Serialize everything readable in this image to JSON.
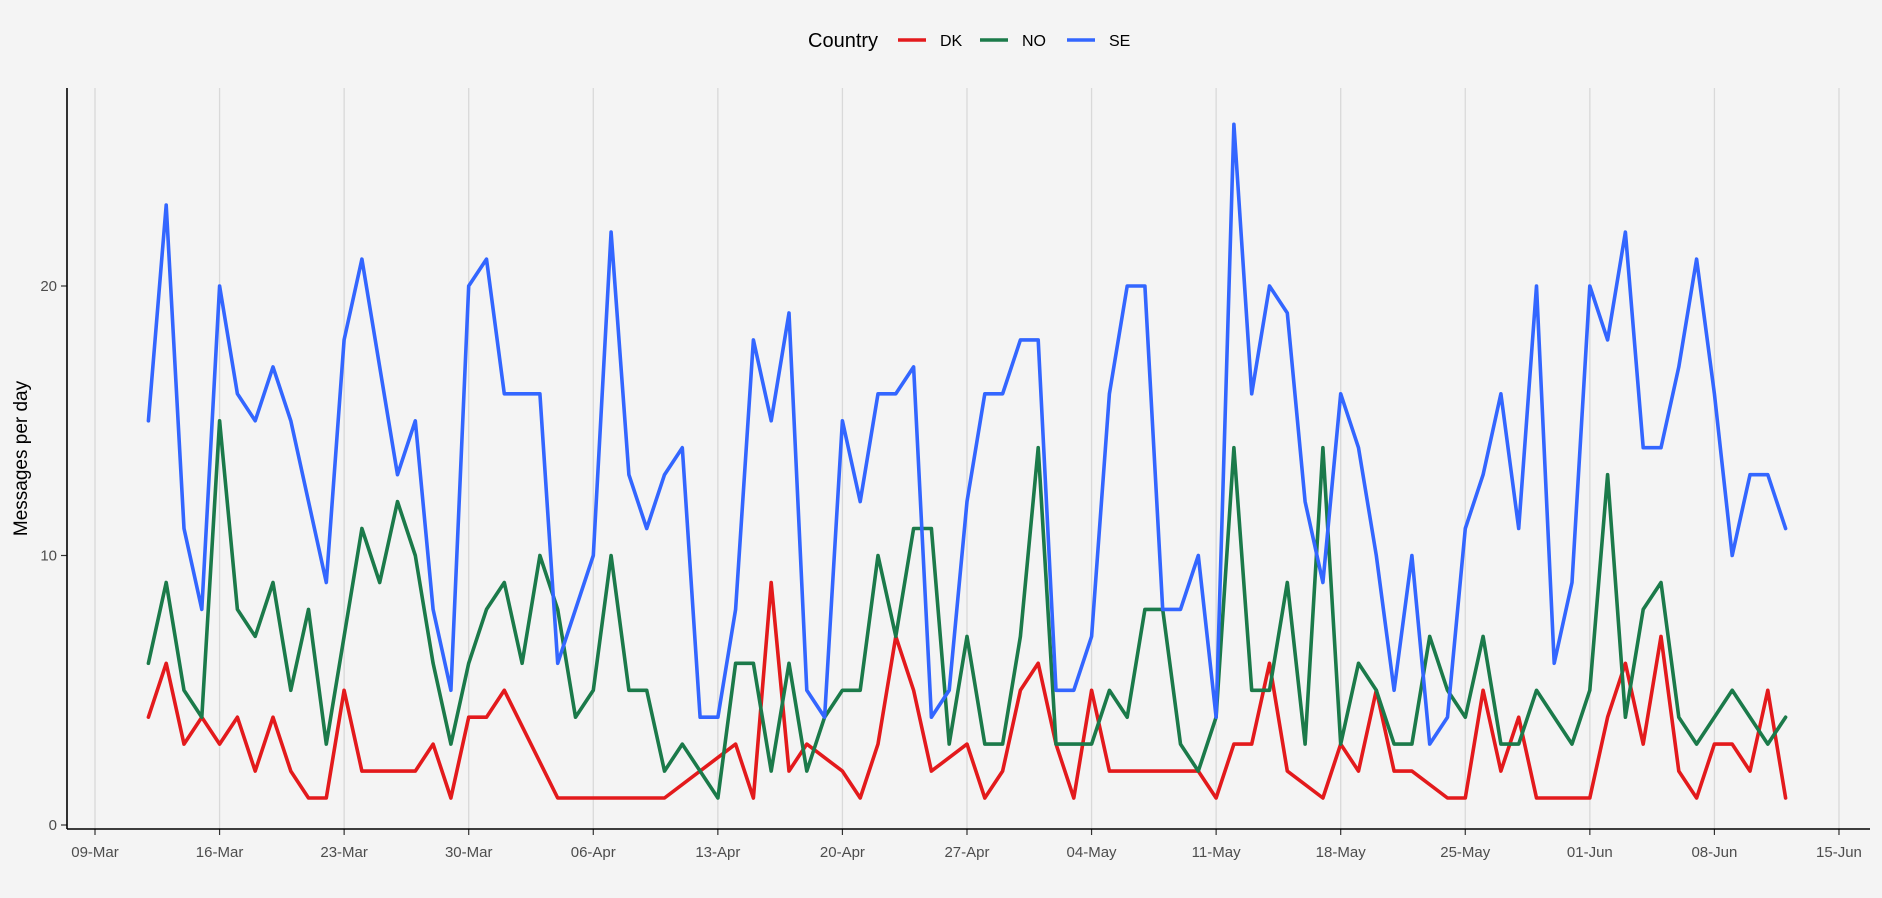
{
  "chart_data": {
    "type": "line",
    "xlabel": "",
    "ylabel": "Messages per day",
    "legend": {
      "title": "Country",
      "placement": "top-center"
    },
    "x_range": [
      "2020-03-09",
      "2020-06-15"
    ],
    "ylim": [
      0,
      26.5
    ],
    "x_ticks": [
      "09-Mar",
      "16-Mar",
      "23-Mar",
      "30-Mar",
      "06-Apr",
      "13-Apr",
      "20-Apr",
      "27-Apr",
      "04-May",
      "11-May",
      "18-May",
      "25-May",
      "01-Jun",
      "08-Jun",
      "15-Jun"
    ],
    "y_ticks": [
      0,
      10,
      20
    ],
    "grid": {
      "vertical": true,
      "horizontal": false
    },
    "series": [
      {
        "name": "DK",
        "color": "#e31a1c",
        "points": [
          [
            "2020-03-12",
            4
          ],
          [
            "2020-03-13",
            6
          ],
          [
            "2020-03-14",
            3
          ],
          [
            "2020-03-15",
            4
          ],
          [
            "2020-03-16",
            3
          ],
          [
            "2020-03-17",
            4
          ],
          [
            "2020-03-18",
            2
          ],
          [
            "2020-03-19",
            4
          ],
          [
            "2020-03-20",
            2
          ],
          [
            "2020-03-21",
            1
          ],
          [
            "2020-03-22",
            1
          ],
          [
            "2020-03-23",
            5
          ],
          [
            "2020-03-24",
            2
          ],
          [
            "2020-03-25",
            2
          ],
          [
            "2020-03-26",
            2
          ],
          [
            "2020-03-27",
            2
          ],
          [
            "2020-03-28",
            3
          ],
          [
            "2020-03-29",
            1
          ],
          [
            "2020-03-30",
            4
          ],
          [
            "2020-03-31",
            4
          ],
          [
            "2020-04-01",
            5
          ],
          [
            "2020-04-04",
            1
          ],
          [
            "2020-04-10",
            1
          ],
          [
            "2020-04-14",
            3
          ],
          [
            "2020-04-15",
            1
          ],
          [
            "2020-04-16",
            9
          ],
          [
            "2020-04-17",
            2
          ],
          [
            "2020-04-18",
            3
          ],
          [
            "2020-04-20",
            2
          ],
          [
            "2020-04-21",
            1
          ],
          [
            "2020-04-22",
            3
          ],
          [
            "2020-04-23",
            7
          ],
          [
            "2020-04-24",
            5
          ],
          [
            "2020-04-25",
            2
          ],
          [
            "2020-04-27",
            3
          ],
          [
            "2020-04-28",
            1
          ],
          [
            "2020-04-29",
            2
          ],
          [
            "2020-04-30",
            5
          ],
          [
            "2020-05-01",
            6
          ],
          [
            "2020-05-02",
            3
          ],
          [
            "2020-05-03",
            1
          ],
          [
            "2020-05-04",
            5
          ],
          [
            "2020-05-05",
            2
          ],
          [
            "2020-05-10",
            2
          ],
          [
            "2020-05-11",
            1
          ],
          [
            "2020-05-12",
            3
          ],
          [
            "2020-05-13",
            3
          ],
          [
            "2020-05-14",
            6
          ],
          [
            "2020-05-15",
            2
          ],
          [
            "2020-05-17",
            1
          ],
          [
            "2020-05-18",
            3
          ],
          [
            "2020-05-19",
            2
          ],
          [
            "2020-05-20",
            5
          ],
          [
            "2020-05-21",
            2
          ],
          [
            "2020-05-22",
            2
          ],
          [
            "2020-05-24",
            1
          ],
          [
            "2020-05-25",
            1
          ],
          [
            "2020-05-26",
            5
          ],
          [
            "2020-05-27",
            2
          ],
          [
            "2020-05-28",
            4
          ],
          [
            "2020-05-29",
            1
          ],
          [
            "2020-06-01",
            1
          ],
          [
            "2020-06-02",
            4
          ],
          [
            "2020-06-03",
            6
          ],
          [
            "2020-06-04",
            3
          ],
          [
            "2020-06-05",
            7
          ],
          [
            "2020-06-06",
            2
          ],
          [
            "2020-06-07",
            1
          ],
          [
            "2020-06-08",
            3
          ],
          [
            "2020-06-09",
            3
          ],
          [
            "2020-06-10",
            2
          ],
          [
            "2020-06-11",
            5
          ],
          [
            "2020-06-12",
            1
          ]
        ]
      },
      {
        "name": "NO",
        "color": "#1b7a4a",
        "points": [
          [
            "2020-03-12",
            6
          ],
          [
            "2020-03-13",
            9
          ],
          [
            "2020-03-14",
            5
          ],
          [
            "2020-03-15",
            4
          ],
          [
            "2020-03-16",
            15
          ],
          [
            "2020-03-17",
            8
          ],
          [
            "2020-03-18",
            7
          ],
          [
            "2020-03-19",
            9
          ],
          [
            "2020-03-20",
            5
          ],
          [
            "2020-03-21",
            8
          ],
          [
            "2020-03-22",
            3
          ],
          [
            "2020-03-23",
            7
          ],
          [
            "2020-03-24",
            11
          ],
          [
            "2020-03-25",
            9
          ],
          [
            "2020-03-26",
            12
          ],
          [
            "2020-03-27",
            10
          ],
          [
            "2020-03-28",
            6
          ],
          [
            "2020-03-29",
            3
          ],
          [
            "2020-03-30",
            6
          ],
          [
            "2020-03-31",
            8
          ],
          [
            "2020-04-01",
            9
          ],
          [
            "2020-04-02",
            6
          ],
          [
            "2020-04-03",
            10
          ],
          [
            "2020-04-04",
            8
          ],
          [
            "2020-04-05",
            4
          ],
          [
            "2020-04-06",
            5
          ],
          [
            "2020-04-07",
            10
          ],
          [
            "2020-04-08",
            5
          ],
          [
            "2020-04-09",
            5
          ],
          [
            "2020-04-10",
            2
          ],
          [
            "2020-04-11",
            3
          ],
          [
            "2020-04-13",
            1
          ],
          [
            "2020-04-14",
            6
          ],
          [
            "2020-04-15",
            6
          ],
          [
            "2020-04-16",
            2
          ],
          [
            "2020-04-17",
            6
          ],
          [
            "2020-04-18",
            2
          ],
          [
            "2020-04-19",
            4
          ],
          [
            "2020-04-20",
            5
          ],
          [
            "2020-04-21",
            5
          ],
          [
            "2020-04-22",
            10
          ],
          [
            "2020-04-23",
            7
          ],
          [
            "2020-04-24",
            11
          ],
          [
            "2020-04-25",
            11
          ],
          [
            "2020-04-26",
            3
          ],
          [
            "2020-04-27",
            7
          ],
          [
            "2020-04-28",
            3
          ],
          [
            "2020-04-29",
            3
          ],
          [
            "2020-04-30",
            7
          ],
          [
            "2020-05-01",
            14
          ],
          [
            "2020-05-02",
            3
          ],
          [
            "2020-05-04",
            3
          ],
          [
            "2020-05-05",
            5
          ],
          [
            "2020-05-06",
            4
          ],
          [
            "2020-05-07",
            8
          ],
          [
            "2020-05-08",
            8
          ],
          [
            "2020-05-09",
            3
          ],
          [
            "2020-05-10",
            2
          ],
          [
            "2020-05-11",
            4
          ],
          [
            "2020-05-12",
            14
          ],
          [
            "2020-05-13",
            5
          ],
          [
            "2020-05-14",
            5
          ],
          [
            "2020-05-15",
            9
          ],
          [
            "2020-05-16",
            3
          ],
          [
            "2020-05-17",
            14
          ],
          [
            "2020-05-18",
            3
          ],
          [
            "2020-05-19",
            6
          ],
          [
            "2020-05-20",
            5
          ],
          [
            "2020-05-21",
            3
          ],
          [
            "2020-05-22",
            3
          ],
          [
            "2020-05-23",
            7
          ],
          [
            "2020-05-24",
            5
          ],
          [
            "2020-05-25",
            4
          ],
          [
            "2020-05-26",
            7
          ],
          [
            "2020-05-27",
            3
          ],
          [
            "2020-05-28",
            3
          ],
          [
            "2020-05-29",
            5
          ],
          [
            "2020-05-31",
            3
          ],
          [
            "2020-06-01",
            5
          ],
          [
            "2020-06-02",
            13
          ],
          [
            "2020-06-03",
            4
          ],
          [
            "2020-06-04",
            8
          ],
          [
            "2020-06-05",
            9
          ],
          [
            "2020-06-06",
            4
          ],
          [
            "2020-06-07",
            3
          ],
          [
            "2020-06-09",
            5
          ],
          [
            "2020-06-11",
            3
          ],
          [
            "2020-06-12",
            4
          ]
        ]
      },
      {
        "name": "SE",
        "color": "#3366ff",
        "points": [
          [
            "2020-03-12",
            15
          ],
          [
            "2020-03-13",
            23
          ],
          [
            "2020-03-14",
            11
          ],
          [
            "2020-03-15",
            8
          ],
          [
            "2020-03-16",
            20
          ],
          [
            "2020-03-17",
            16
          ],
          [
            "2020-03-18",
            15
          ],
          [
            "2020-03-19",
            17
          ],
          [
            "2020-03-20",
            15
          ],
          [
            "2020-03-22",
            9
          ],
          [
            "2020-03-23",
            18
          ],
          [
            "2020-03-24",
            21
          ],
          [
            "2020-03-26",
            13
          ],
          [
            "2020-03-27",
            15
          ],
          [
            "2020-03-28",
            8
          ],
          [
            "2020-03-29",
            5
          ],
          [
            "2020-03-30",
            20
          ],
          [
            "2020-03-31",
            21
          ],
          [
            "2020-04-01",
            16
          ],
          [
            "2020-04-03",
            16
          ],
          [
            "2020-04-04",
            6
          ],
          [
            "2020-04-06",
            10
          ],
          [
            "2020-04-07",
            22
          ],
          [
            "2020-04-08",
            13
          ],
          [
            "2020-04-09",
            11
          ],
          [
            "2020-04-10",
            13
          ],
          [
            "2020-04-11",
            14
          ],
          [
            "2020-04-12",
            4
          ],
          [
            "2020-04-13",
            4
          ],
          [
            "2020-04-14",
            8
          ],
          [
            "2020-04-15",
            18
          ],
          [
            "2020-04-16",
            15
          ],
          [
            "2020-04-17",
            19
          ],
          [
            "2020-04-18",
            5
          ],
          [
            "2020-04-19",
            4
          ],
          [
            "2020-04-20",
            15
          ],
          [
            "2020-04-21",
            12
          ],
          [
            "2020-04-22",
            16
          ],
          [
            "2020-04-23",
            16
          ],
          [
            "2020-04-24",
            17
          ],
          [
            "2020-04-25",
            4
          ],
          [
            "2020-04-26",
            5
          ],
          [
            "2020-04-27",
            12
          ],
          [
            "2020-04-28",
            16
          ],
          [
            "2020-04-29",
            16
          ],
          [
            "2020-04-30",
            18
          ],
          [
            "2020-05-01",
            18
          ],
          [
            "2020-05-02",
            5
          ],
          [
            "2020-05-03",
            5
          ],
          [
            "2020-05-04",
            7
          ],
          [
            "2020-05-05",
            16
          ],
          [
            "2020-05-06",
            20
          ],
          [
            "2020-05-07",
            20
          ],
          [
            "2020-05-08",
            8
          ],
          [
            "2020-05-09",
            8
          ],
          [
            "2020-05-10",
            10
          ],
          [
            "2020-05-11",
            4
          ],
          [
            "2020-05-12",
            26
          ],
          [
            "2020-05-13",
            16
          ],
          [
            "2020-05-14",
            20
          ],
          [
            "2020-05-15",
            19
          ],
          [
            "2020-05-16",
            12
          ],
          [
            "2020-05-17",
            9
          ],
          [
            "2020-05-18",
            16
          ],
          [
            "2020-05-19",
            14
          ],
          [
            "2020-05-20",
            10
          ],
          [
            "2020-05-21",
            5
          ],
          [
            "2020-05-22",
            10
          ],
          [
            "2020-05-23",
            3
          ],
          [
            "2020-05-24",
            4
          ],
          [
            "2020-05-25",
            11
          ],
          [
            "2020-05-26",
            13
          ],
          [
            "2020-05-27",
            16
          ],
          [
            "2020-05-28",
            11
          ],
          [
            "2020-05-29",
            20
          ],
          [
            "2020-05-30",
            6
          ],
          [
            "2020-05-31",
            9
          ],
          [
            "2020-06-01",
            20
          ],
          [
            "2020-06-02",
            18
          ],
          [
            "2020-06-03",
            22
          ],
          [
            "2020-06-04",
            14
          ],
          [
            "2020-06-05",
            14
          ],
          [
            "2020-06-06",
            17
          ],
          [
            "2020-06-07",
            21
          ],
          [
            "2020-06-08",
            16
          ],
          [
            "2020-06-09",
            10
          ],
          [
            "2020-06-10",
            13
          ],
          [
            "2020-06-11",
            13
          ],
          [
            "2020-06-12",
            11
          ]
        ]
      }
    ]
  }
}
